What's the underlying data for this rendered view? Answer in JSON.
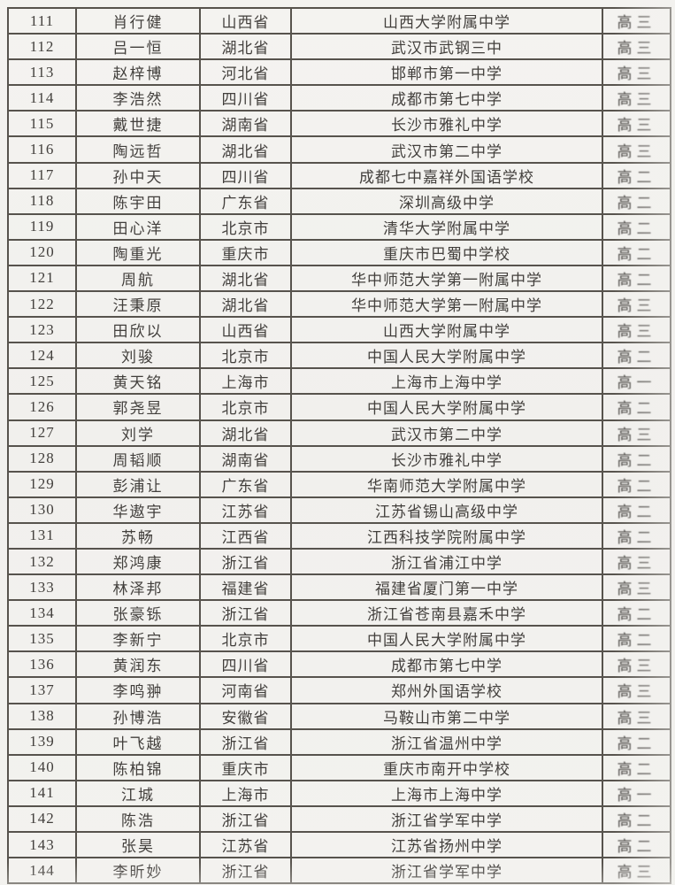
{
  "page": {
    "background_color": "#f2f1ee",
    "ink_color": "#423f3c",
    "border_color": "#57534d"
  },
  "table": {
    "rows": [
      {
        "no": "111",
        "name": "肖行健",
        "province": "山西省",
        "school": "山西大学附属中学",
        "grade": "高三"
      },
      {
        "no": "112",
        "name": "吕一恒",
        "province": "湖北省",
        "school": "武汉市武钢三中",
        "grade": "高三"
      },
      {
        "no": "113",
        "name": "赵梓博",
        "province": "河北省",
        "school": "邯郸市第一中学",
        "grade": "高三"
      },
      {
        "no": "114",
        "name": "李浩然",
        "province": "四川省",
        "school": "成都市第七中学",
        "grade": "高三"
      },
      {
        "no": "115",
        "name": "戴世捷",
        "province": "湖南省",
        "school": "长沙市雅礼中学",
        "grade": "高三"
      },
      {
        "no": "116",
        "name": "陶远哲",
        "province": "湖北省",
        "school": "武汉市第二中学",
        "grade": "高三"
      },
      {
        "no": "117",
        "name": "孙中天",
        "province": "四川省",
        "school": "成都七中嘉祥外国语学校",
        "grade": "高二"
      },
      {
        "no": "118",
        "name": "陈宇田",
        "province": "广东省",
        "school": "深圳高级中学",
        "grade": "高二"
      },
      {
        "no": "119",
        "name": "田心洋",
        "province": "北京市",
        "school": "清华大学附属中学",
        "grade": "高二"
      },
      {
        "no": "120",
        "name": "陶重光",
        "province": "重庆市",
        "school": "重庆市巴蜀中学校",
        "grade": "高二"
      },
      {
        "no": "121",
        "name": "周航",
        "province": "湖北省",
        "school": "华中师范大学第一附属中学",
        "grade": "高二"
      },
      {
        "no": "122",
        "name": "汪秉原",
        "province": "湖北省",
        "school": "华中师范大学第一附属中学",
        "grade": "高三"
      },
      {
        "no": "123",
        "name": "田欣以",
        "province": "山西省",
        "school": "山西大学附属中学",
        "grade": "高三"
      },
      {
        "no": "124",
        "name": "刘骏",
        "province": "北京市",
        "school": "中国人民大学附属中学",
        "grade": "高二"
      },
      {
        "no": "125",
        "name": "黄天铭",
        "province": "上海市",
        "school": "上海市上海中学",
        "grade": "高一"
      },
      {
        "no": "126",
        "name": "郭尧昱",
        "province": "北京市",
        "school": "中国人民大学附属中学",
        "grade": "高二"
      },
      {
        "no": "127",
        "name": "刘学",
        "province": "湖北省",
        "school": "武汉市第二中学",
        "grade": "高三"
      },
      {
        "no": "128",
        "name": "周韬顺",
        "province": "湖南省",
        "school": "长沙市雅礼中学",
        "grade": "高二"
      },
      {
        "no": "129",
        "name": "彭浦让",
        "province": "广东省",
        "school": "华南师范大学附属中学",
        "grade": "高二"
      },
      {
        "no": "130",
        "name": "华遨宇",
        "province": "江苏省",
        "school": "江苏省锡山高级中学",
        "grade": "高二"
      },
      {
        "no": "131",
        "name": "苏畅",
        "province": "江西省",
        "school": "江西科技学院附属中学",
        "grade": "高二"
      },
      {
        "no": "132",
        "name": "郑鸿康",
        "province": "浙江省",
        "school": "浙江省浦江中学",
        "grade": "高三"
      },
      {
        "no": "133",
        "name": "林泽邦",
        "province": "福建省",
        "school": "福建省厦门第一中学",
        "grade": "高三"
      },
      {
        "no": "134",
        "name": "张豪铄",
        "province": "浙江省",
        "school": "浙江省苍南县嘉禾中学",
        "grade": "高二"
      },
      {
        "no": "135",
        "name": "李新宁",
        "province": "北京市",
        "school": "中国人民大学附属中学",
        "grade": "高二"
      },
      {
        "no": "136",
        "name": "黄润东",
        "province": "四川省",
        "school": "成都市第七中学",
        "grade": "高三"
      },
      {
        "no": "137",
        "name": "李鸣翀",
        "province": "河南省",
        "school": "郑州外国语学校",
        "grade": "高三"
      },
      {
        "no": "138",
        "name": "孙博浩",
        "province": "安徽省",
        "school": "马鞍山市第二中学",
        "grade": "高三"
      },
      {
        "no": "139",
        "name": "叶飞越",
        "province": "浙江省",
        "school": "浙江省温州中学",
        "grade": "高二"
      },
      {
        "no": "140",
        "name": "陈柏锦",
        "province": "重庆市",
        "school": "重庆市南开中学校",
        "grade": "高二"
      },
      {
        "no": "141",
        "name": "江城",
        "province": "上海市",
        "school": "上海市上海中学",
        "grade": "高一"
      },
      {
        "no": "142",
        "name": "陈浩",
        "province": "浙江省",
        "school": "浙江省学军中学",
        "grade": "高二"
      },
      {
        "no": "143",
        "name": "张昊",
        "province": "江苏省",
        "school": "江苏省扬州中学",
        "grade": "高二"
      },
      {
        "no": "144",
        "name": "李昕妙",
        "province": "浙江省",
        "school": "浙江省学军中学",
        "grade": "高三"
      }
    ]
  }
}
